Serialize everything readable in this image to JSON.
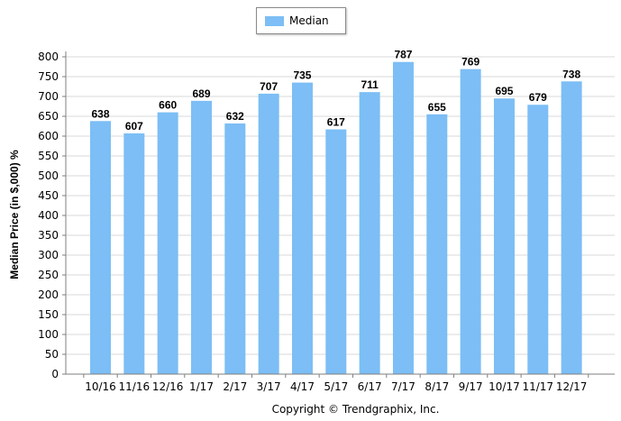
{
  "chart_data": {
    "type": "bar",
    "categories": [
      "10/16",
      "11/16",
      "12/16",
      "1/17",
      "2/17",
      "3/17",
      "4/17",
      "5/17",
      "6/17",
      "7/17",
      "8/17",
      "9/17",
      "10/17",
      "11/17",
      "12/17"
    ],
    "series": [
      {
        "name": "Median",
        "values": [
          638,
          607,
          660,
          689,
          632,
          707,
          735,
          617,
          711,
          787,
          655,
          769,
          695,
          679,
          738
        ]
      }
    ],
    "ylabel": "Median Price (in $,000) %",
    "xlabel": "",
    "ylim": [
      0,
      800
    ],
    "yticks": [
      0,
      50,
      100,
      150,
      200,
      250,
      300,
      350,
      400,
      450,
      500,
      550,
      600,
      650,
      700,
      750,
      800
    ],
    "grid": true,
    "legend_position": "top-center",
    "bar_color": "#7cbef5",
    "grid_color": "#d9d9d9"
  },
  "footer": {
    "copyright": "Copyright © Trendgraphix, Inc."
  }
}
